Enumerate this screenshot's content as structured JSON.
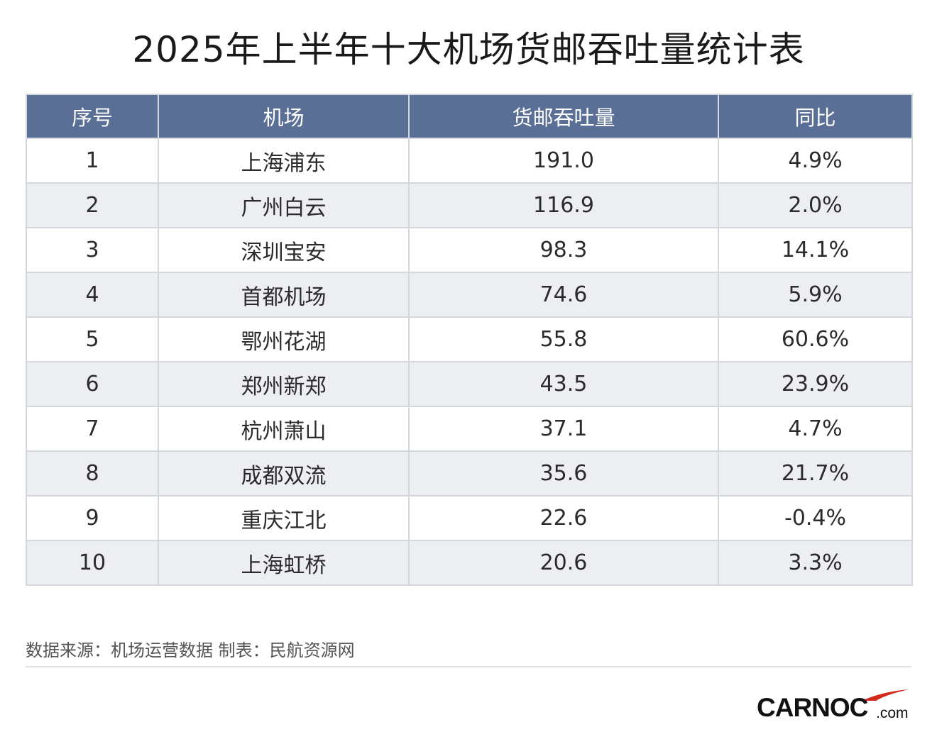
{
  "title": "2025年上半年十大机场货邮吞吐量统计表",
  "table": {
    "headers": [
      "序号",
      "机场",
      "货邮吞吐量",
      "同比"
    ],
    "rows": [
      [
        "1",
        "上海浦东",
        "191.0",
        "4.9%"
      ],
      [
        "2",
        "广州白云",
        "116.9",
        "2.0%"
      ],
      [
        "3",
        "深圳宝安",
        "98.3",
        "14.1%"
      ],
      [
        "4",
        "首都机场",
        "74.6",
        "5.9%"
      ],
      [
        "5",
        "鄂州花湖",
        "55.8",
        "60.6%"
      ],
      [
        "6",
        "郑州新郑",
        "43.5",
        "23.9%"
      ],
      [
        "7",
        "杭州萧山",
        "37.1",
        "4.7%"
      ],
      [
        "8",
        "成都双流",
        "35.6",
        "21.7%"
      ],
      [
        "9",
        "重庆江北",
        "22.6",
        "-0.4%"
      ],
      [
        "10",
        "上海虹桥",
        "20.6",
        "3.3%"
      ]
    ]
  },
  "footer": {
    "source": "数据来源：机场运营数据 制表：民航资源网"
  },
  "logo": {
    "main": "CARNOC",
    "suffix": ".com"
  },
  "colors": {
    "header_bg": "#5a6f96",
    "stripe_bg": "#eceef2",
    "logo_accent": "#d42a1e"
  }
}
